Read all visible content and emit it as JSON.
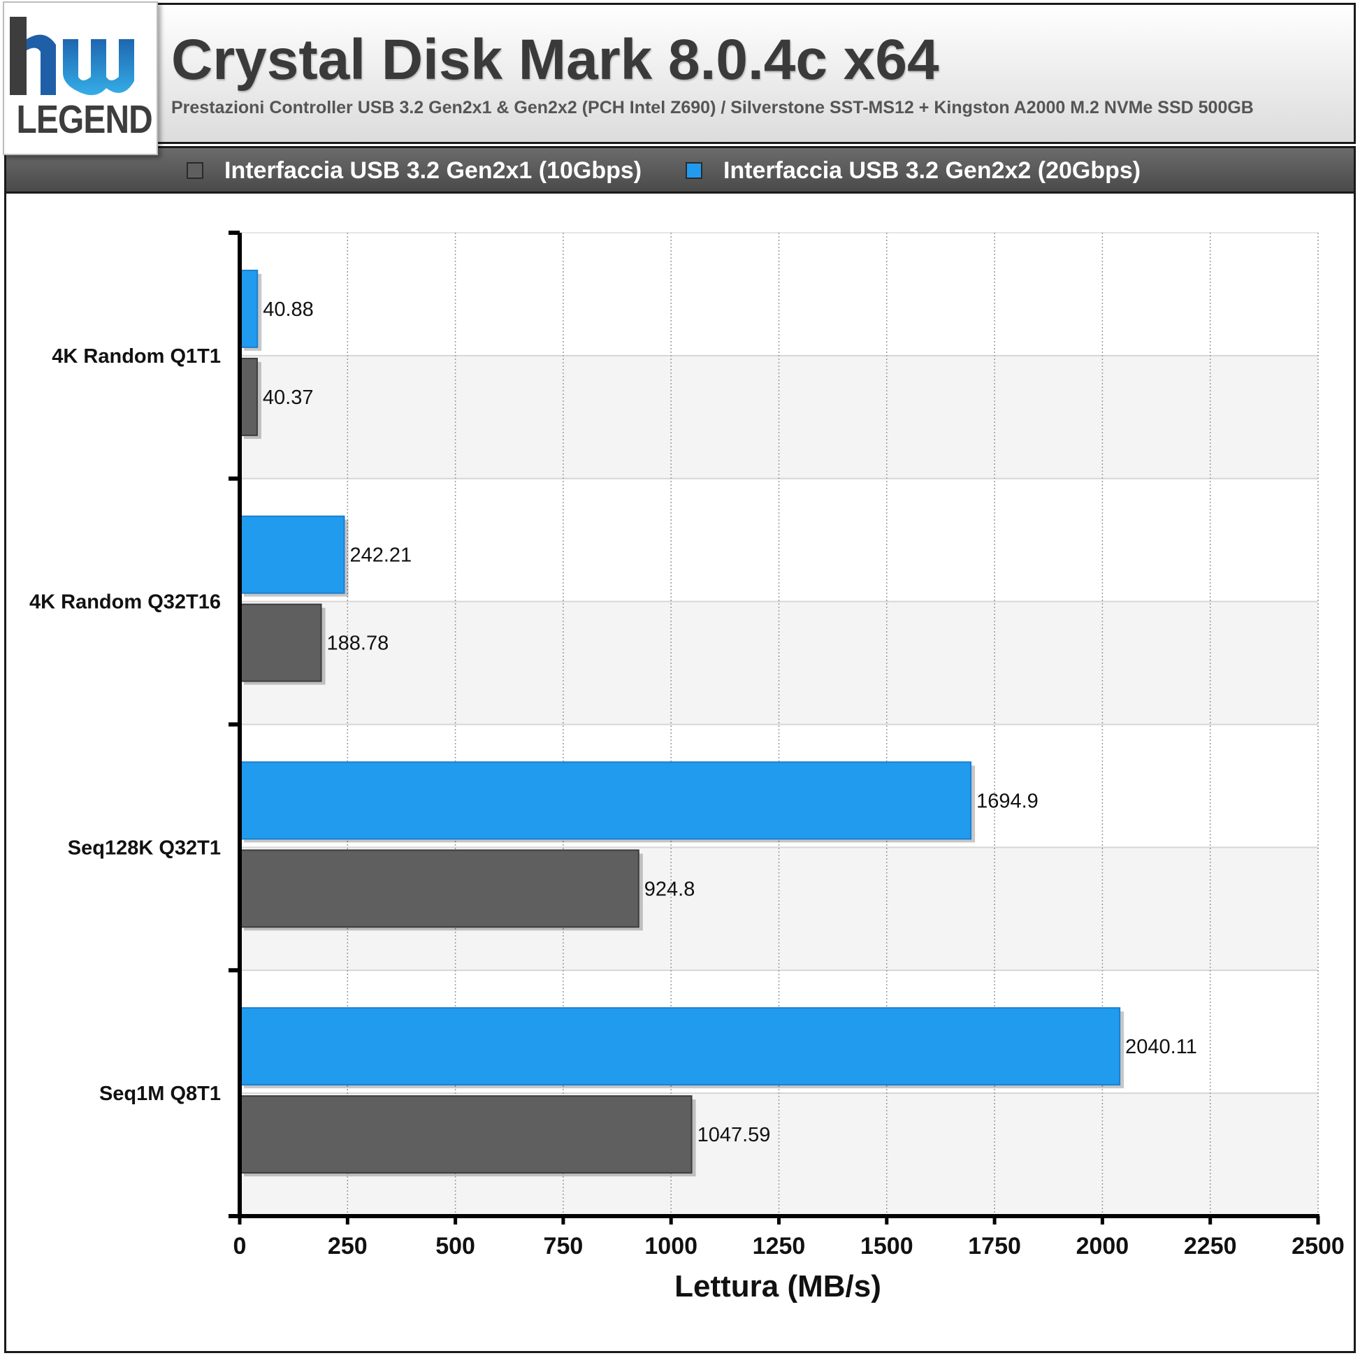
{
  "header": {
    "title": "Crystal Disk Mark 8.0.4c x64",
    "subtitle": "Prestazioni Controller USB 3.2 Gen2x1 & Gen2x2 (PCH Intel Z690) / Silverstone SST-MS12 + Kingston A2000 M.2 NVMe SSD 500GB",
    "logo_text": "LEGEND",
    "logo_mark": "hw"
  },
  "colors": {
    "series_gen2x1": "#5f5f5f",
    "series_gen2x2": "#219bee",
    "band": "#f4f4f4",
    "gridline": "#9a9a9a"
  },
  "chart_data": {
    "type": "bar",
    "orientation": "horizontal",
    "categories": [
      "4K Random Q1T1",
      "4K Random Q32T16",
      "Seq128K Q32T1",
      "Seq1M Q8T1"
    ],
    "series": [
      {
        "name": "Interfaccia USB 3.2 Gen2x1 (10Gbps)",
        "values": [
          40.37,
          188.78,
          924.8,
          1047.59
        ]
      },
      {
        "name": "Interfaccia USB 3.2 Gen2x2 (20Gbps)",
        "values": [
          40.88,
          242.21,
          1694.9,
          2040.11
        ]
      }
    ],
    "value_labels": {
      "gen2x1": [
        "40.37",
        "188.78",
        "924.8",
        "1047.59"
      ],
      "gen2x2": [
        "40.88",
        "242.21",
        "1694.9",
        "2040.11"
      ]
    },
    "xlabel": "Lettura (MB/s)",
    "xlim": [
      0,
      2500
    ],
    "xticks": [
      "0",
      "250",
      "500",
      "750",
      "1000",
      "1250",
      "1500",
      "1750",
      "2000",
      "2250",
      "2500"
    ],
    "grid": true,
    "legend_position": "top"
  }
}
